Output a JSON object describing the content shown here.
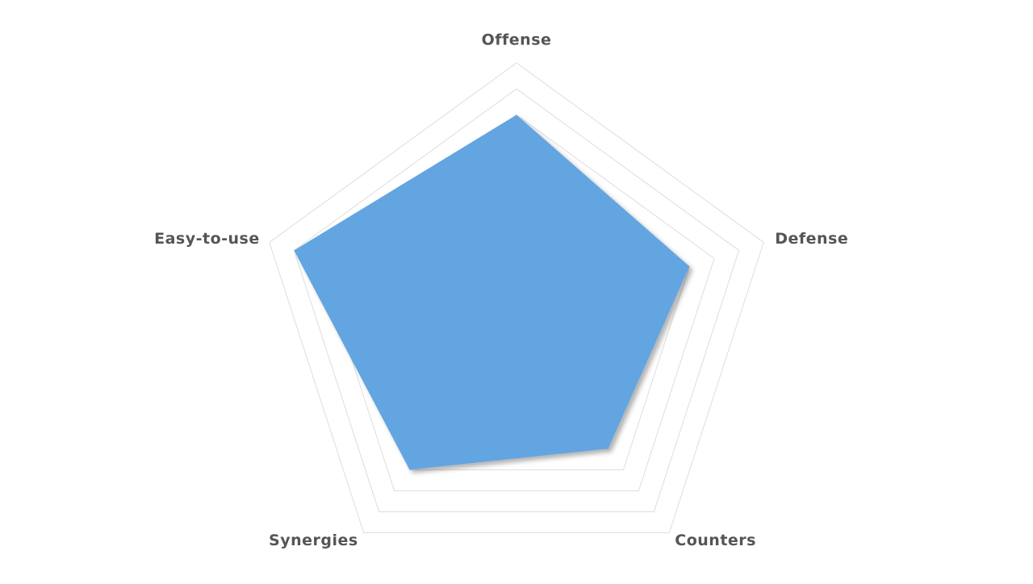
{
  "chart_data": {
    "type": "radar",
    "categories": [
      "Offense",
      "Defense",
      "Counters",
      "Synergies",
      "Easy-to-use"
    ],
    "values": [
      8,
      7,
      6,
      7,
      9
    ],
    "color": "#64a5e0",
    "ylim": [
      0,
      10
    ],
    "yticks": [
      1,
      2,
      3,
      4,
      5,
      6,
      7,
      8,
      9,
      10
    ],
    "grid": true
  }
}
